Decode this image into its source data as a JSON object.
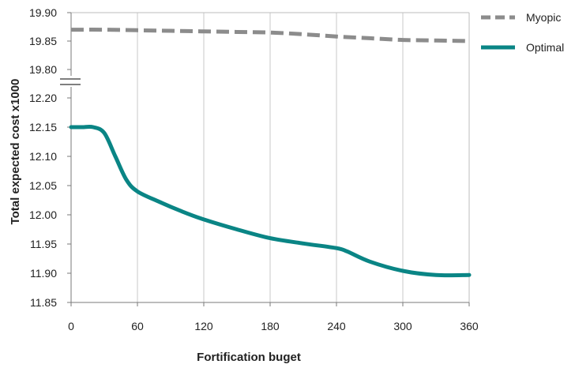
{
  "chart_data": {
    "type": "line",
    "title": "",
    "xlabel": "Fortification buget",
    "ylabel": "Total expected cost x1000",
    "x_ticks": [
      "0",
      "60",
      "120",
      "180",
      "240",
      "300",
      "360"
    ],
    "xlim": [
      0,
      360
    ],
    "axis_break": true,
    "upper_y_ticks": [
      "19.80",
      "19.85",
      "19.90"
    ],
    "lower_y_ticks": [
      "11.85",
      "11.90",
      "11.95",
      "12.00",
      "12.05",
      "12.10",
      "12.15",
      "12.20"
    ],
    "upper_ylim": [
      19.8,
      19.9
    ],
    "lower_ylim": [
      11.85,
      12.2
    ],
    "grid": "vertical",
    "legend_position": "right",
    "series": [
      {
        "name": "Myopic",
        "style": "dashed",
        "color": "#8c8c8c",
        "segment": "upper",
        "x": [
          0,
          30,
          60,
          90,
          120,
          150,
          180,
          210,
          240,
          270,
          300,
          330,
          360
        ],
        "y": [
          19.87,
          19.87,
          19.869,
          19.868,
          19.867,
          19.866,
          19.865,
          19.862,
          19.858,
          19.855,
          19.852,
          19.851,
          19.85
        ]
      },
      {
        "name": "Optimal",
        "style": "solid",
        "color": "#0a8585",
        "segment": "lower",
        "x": [
          0,
          10,
          20,
          30,
          40,
          50,
          60,
          80,
          100,
          120,
          150,
          180,
          210,
          240,
          250,
          270,
          300,
          330,
          360
        ],
        "y": [
          12.15,
          12.15,
          12.15,
          12.14,
          12.1,
          12.06,
          12.04,
          12.022,
          12.006,
          11.992,
          11.975,
          11.96,
          11.951,
          11.943,
          11.937,
          11.92,
          11.904,
          11.897,
          11.897
        ]
      }
    ]
  }
}
